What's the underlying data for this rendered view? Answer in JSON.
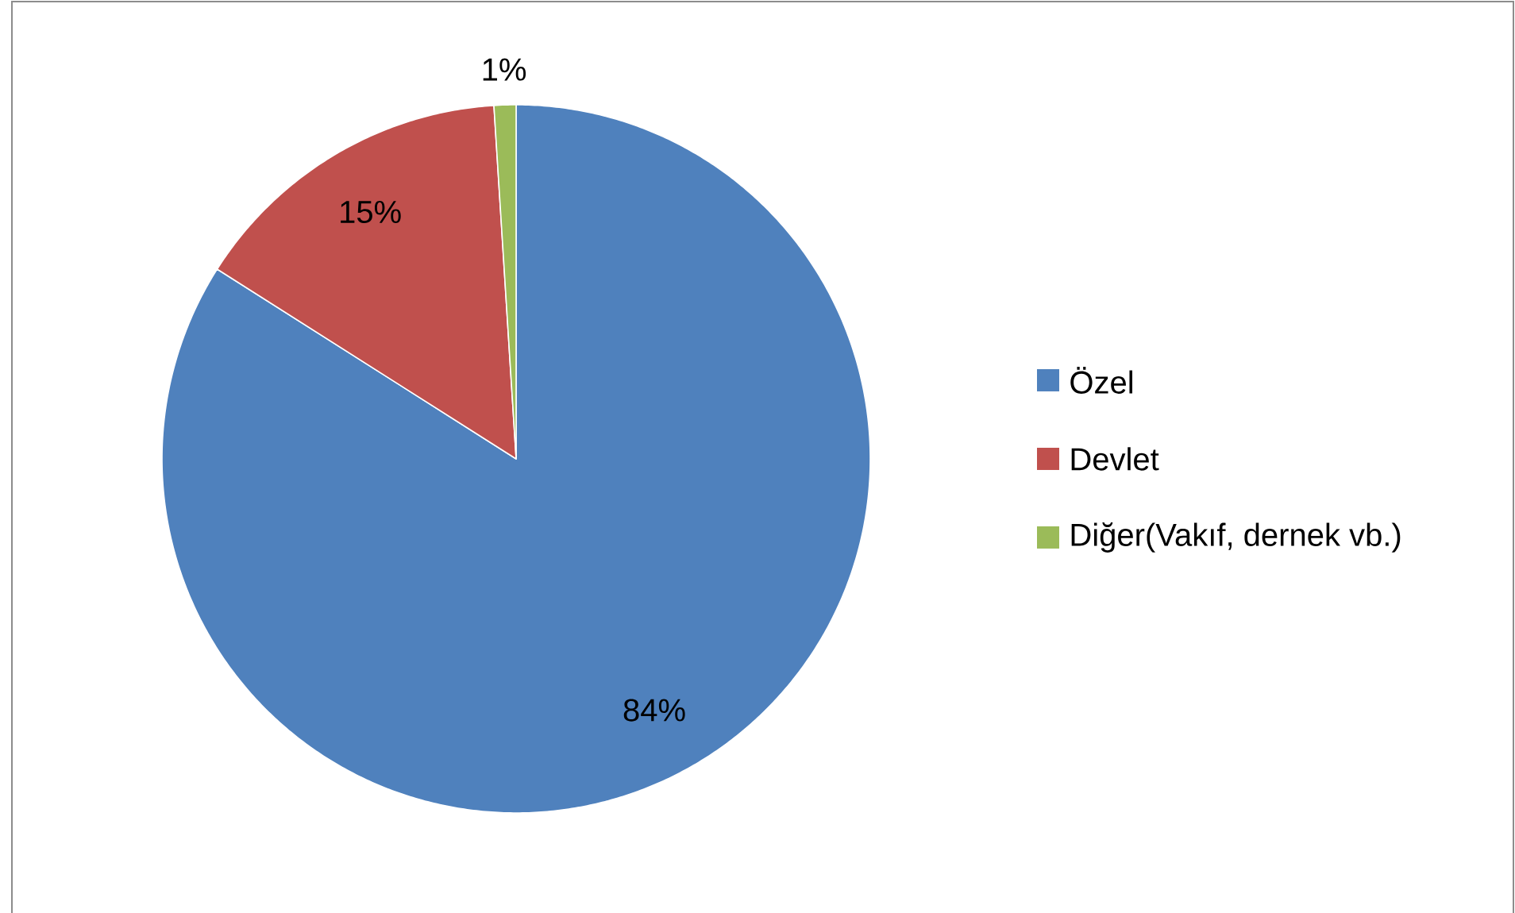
{
  "chart_data": {
    "type": "pie",
    "categories": [
      "Özel",
      "Devlet",
      "Diğer(Vakıf, dernek vb.)"
    ],
    "values": [
      84,
      15,
      1
    ],
    "colors": [
      "#4f81bd",
      "#c0504d",
      "#9bbb59"
    ],
    "value_labels": [
      "84%",
      "15%",
      "1%"
    ],
    "legend": "right"
  }
}
